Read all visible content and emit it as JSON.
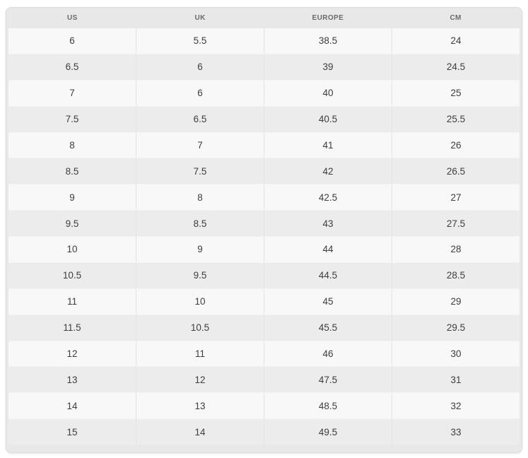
{
  "table": {
    "name": "shoe-size-conversion-chart",
    "columns": [
      "US",
      "UK",
      "EUROPE",
      "CM"
    ],
    "rows": [
      [
        "6",
        "5.5",
        "38.5",
        "24"
      ],
      [
        "6.5",
        "6",
        "39",
        "24.5"
      ],
      [
        "7",
        "6",
        "40",
        "25"
      ],
      [
        "7.5",
        "6.5",
        "40.5",
        "25.5"
      ],
      [
        "8",
        "7",
        "41",
        "26"
      ],
      [
        "8.5",
        "7.5",
        "42",
        "26.5"
      ],
      [
        "9",
        "8",
        "42.5",
        "27"
      ],
      [
        "9.5",
        "8.5",
        "43",
        "27.5"
      ],
      [
        "10",
        "9",
        "44",
        "28"
      ],
      [
        "10.5",
        "9.5",
        "44.5",
        "28.5"
      ],
      [
        "11",
        "10",
        "45",
        "29"
      ],
      [
        "11.5",
        "10.5",
        "45.5",
        "29.5"
      ],
      [
        "12",
        "11",
        "46",
        "30"
      ],
      [
        "13",
        "12",
        "47.5",
        "31"
      ],
      [
        "14",
        "13",
        "48.5",
        "32"
      ],
      [
        "15",
        "14",
        "49.5",
        "33"
      ]
    ]
  },
  "chart_data": {
    "type": "table",
    "title": "",
    "columns": [
      "US",
      "UK",
      "EUROPE",
      "CM"
    ],
    "rows": [
      [
        "6",
        "5.5",
        "38.5",
        "24"
      ],
      [
        "6.5",
        "6",
        "39",
        "24.5"
      ],
      [
        "7",
        "6",
        "40",
        "25"
      ],
      [
        "7.5",
        "6.5",
        "40.5",
        "25.5"
      ],
      [
        "8",
        "7",
        "41",
        "26"
      ],
      [
        "8.5",
        "7.5",
        "42",
        "26.5"
      ],
      [
        "9",
        "8",
        "42.5",
        "27"
      ],
      [
        "9.5",
        "8.5",
        "43",
        "27.5"
      ],
      [
        "10",
        "9",
        "44",
        "28"
      ],
      [
        "10.5",
        "9.5",
        "44.5",
        "28.5"
      ],
      [
        "11",
        "10",
        "45",
        "29"
      ],
      [
        "11.5",
        "10.5",
        "45.5",
        "29.5"
      ],
      [
        "12",
        "11",
        "46",
        "30"
      ],
      [
        "13",
        "12",
        "47.5",
        "31"
      ],
      [
        "14",
        "13",
        "48.5",
        "32"
      ],
      [
        "15",
        "14",
        "49.5",
        "33"
      ]
    ],
    "layout": {
      "header_position": "top",
      "row_striping": true,
      "column_dividers": true
    }
  },
  "colors": {
    "page_bg": "#ffffff",
    "panel_bg": "#e8e8e8",
    "panel_border": "#dcdcdc",
    "row_light": "#f8f8f8",
    "row_dark": "#ececec",
    "column_divider": "#e3e3e3",
    "header_text": "#6a6a6a",
    "cell_text": "#3d3d3d"
  }
}
